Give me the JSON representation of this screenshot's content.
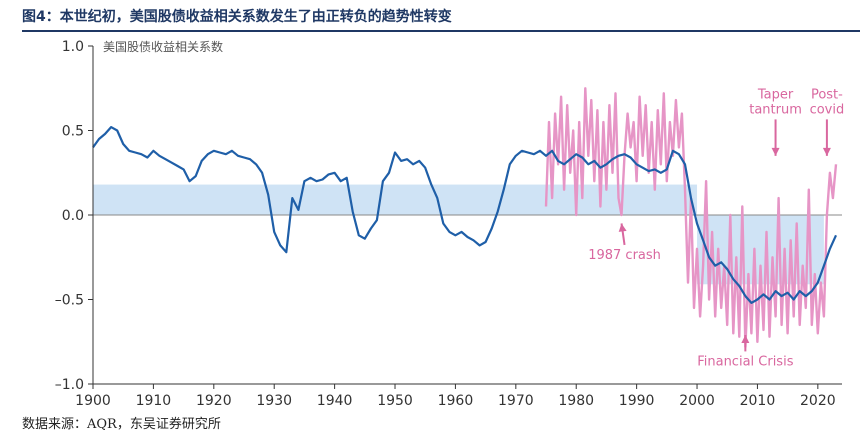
{
  "figure_title": "图4：本世纪初，美国股债收益相关系数发生了由正转负的趋势性转变",
  "source_note": "数据来源：AQR，东吴证券研究所",
  "colors": {
    "title": "#1f3864",
    "corr_line": "#1f5fa8",
    "rolling_line": "#e695c6",
    "band": "#cfe3f5",
    "annotation": "#d9679f",
    "axis_text": "#333333"
  },
  "chart_data": {
    "type": "line",
    "ylabel": "美国股债收益相关系数",
    "xlim": [
      1900,
      2024
    ],
    "ylim": [
      -1.0,
      1.0
    ],
    "x_ticks": [
      1900,
      1910,
      1920,
      1930,
      1940,
      1950,
      1960,
      1970,
      1980,
      1990,
      2000,
      2010,
      2020
    ],
    "y_ticks": [
      {
        "value": 1.0,
        "label": "1.0"
      },
      {
        "value": 0.5,
        "label": "0.5"
      },
      {
        "value": 0.0,
        "label": "0.0"
      },
      {
        "value": -0.5,
        "label": "–0.5"
      },
      {
        "value": -1.0,
        "label": "–1.0"
      }
    ],
    "bands": [
      {
        "x": [
          1900,
          2000
        ],
        "y": [
          0.0,
          0.18
        ]
      },
      {
        "x": [
          2000,
          2021
        ],
        "y": [
          -0.41,
          0.0
        ]
      }
    ],
    "series": [
      {
        "key": "long_window",
        "points": [
          [
            1900,
            0.4
          ],
          [
            1901,
            0.45
          ],
          [
            1902,
            0.48
          ],
          [
            1903,
            0.52
          ],
          [
            1904,
            0.5
          ],
          [
            1905,
            0.42
          ],
          [
            1906,
            0.38
          ],
          [
            1907,
            0.37
          ],
          [
            1908,
            0.36
          ],
          [
            1909,
            0.34
          ],
          [
            1910,
            0.38
          ],
          [
            1911,
            0.35
          ],
          [
            1912,
            0.33
          ],
          [
            1913,
            0.31
          ],
          [
            1914,
            0.29
          ],
          [
            1915,
            0.27
          ],
          [
            1916,
            0.2
          ],
          [
            1917,
            0.23
          ],
          [
            1918,
            0.32
          ],
          [
            1919,
            0.36
          ],
          [
            1920,
            0.38
          ],
          [
            1921,
            0.37
          ],
          [
            1922,
            0.36
          ],
          [
            1923,
            0.38
          ],
          [
            1924,
            0.35
          ],
          [
            1925,
            0.34
          ],
          [
            1926,
            0.33
          ],
          [
            1927,
            0.3
          ],
          [
            1928,
            0.25
          ],
          [
            1929,
            0.12
          ],
          [
            1930,
            -0.1
          ],
          [
            1931,
            -0.18
          ],
          [
            1932,
            -0.22
          ],
          [
            1933,
            0.1
          ],
          [
            1934,
            0.03
          ],
          [
            1935,
            0.2
          ],
          [
            1936,
            0.22
          ],
          [
            1937,
            0.2
          ],
          [
            1938,
            0.21
          ],
          [
            1939,
            0.24
          ],
          [
            1940,
            0.25
          ],
          [
            1941,
            0.2
          ],
          [
            1942,
            0.22
          ],
          [
            1943,
            0.02
          ],
          [
            1944,
            -0.12
          ],
          [
            1945,
            -0.14
          ],
          [
            1946,
            -0.08
          ],
          [
            1947,
            -0.03
          ],
          [
            1948,
            0.2
          ],
          [
            1949,
            0.25
          ],
          [
            1950,
            0.37
          ],
          [
            1951,
            0.32
          ],
          [
            1952,
            0.33
          ],
          [
            1953,
            0.3
          ],
          [
            1954,
            0.32
          ],
          [
            1955,
            0.28
          ],
          [
            1956,
            0.18
          ],
          [
            1957,
            0.1
          ],
          [
            1958,
            -0.05
          ],
          [
            1959,
            -0.1
          ],
          [
            1960,
            -0.12
          ],
          [
            1961,
            -0.1
          ],
          [
            1962,
            -0.13
          ],
          [
            1963,
            -0.15
          ],
          [
            1964,
            -0.18
          ],
          [
            1965,
            -0.16
          ],
          [
            1966,
            -0.08
          ],
          [
            1967,
            0.02
          ],
          [
            1968,
            0.15
          ],
          [
            1969,
            0.3
          ],
          [
            1970,
            0.35
          ],
          [
            1971,
            0.38
          ],
          [
            1972,
            0.37
          ],
          [
            1973,
            0.36
          ],
          [
            1974,
            0.38
          ],
          [
            1975,
            0.35
          ],
          [
            1976,
            0.38
          ],
          [
            1977,
            0.32
          ],
          [
            1978,
            0.3
          ],
          [
            1979,
            0.33
          ],
          [
            1980,
            0.36
          ],
          [
            1981,
            0.34
          ],
          [
            1982,
            0.3
          ],
          [
            1983,
            0.32
          ],
          [
            1984,
            0.28
          ],
          [
            1985,
            0.3
          ],
          [
            1986,
            0.33
          ],
          [
            1987,
            0.35
          ],
          [
            1988,
            0.36
          ],
          [
            1989,
            0.34
          ],
          [
            1990,
            0.3
          ],
          [
            1991,
            0.28
          ],
          [
            1992,
            0.26
          ],
          [
            1993,
            0.27
          ],
          [
            1994,
            0.25
          ],
          [
            1995,
            0.27
          ],
          [
            1996,
            0.38
          ],
          [
            1997,
            0.36
          ],
          [
            1998,
            0.3
          ],
          [
            1999,
            0.1
          ],
          [
            2000,
            -0.05
          ],
          [
            2001,
            -0.15
          ],
          [
            2002,
            -0.25
          ],
          [
            2003,
            -0.3
          ],
          [
            2004,
            -0.28
          ],
          [
            2005,
            -0.32
          ],
          [
            2006,
            -0.38
          ],
          [
            2007,
            -0.42
          ],
          [
            2008,
            -0.48
          ],
          [
            2009,
            -0.52
          ],
          [
            2010,
            -0.5
          ],
          [
            2011,
            -0.47
          ],
          [
            2012,
            -0.5
          ],
          [
            2013,
            -0.45
          ],
          [
            2014,
            -0.48
          ],
          [
            2015,
            -0.46
          ],
          [
            2016,
            -0.5
          ],
          [
            2017,
            -0.45
          ],
          [
            2018,
            -0.48
          ],
          [
            2019,
            -0.45
          ],
          [
            2020,
            -0.4
          ],
          [
            2021,
            -0.3
          ],
          [
            2022,
            -0.2
          ],
          [
            2023,
            -0.12
          ]
        ]
      },
      {
        "key": "short_window",
        "points": [
          [
            1975,
            0.05
          ],
          [
            1975.5,
            0.55
          ],
          [
            1976,
            0.1
          ],
          [
            1976.5,
            0.6
          ],
          [
            1977,
            0.3
          ],
          [
            1977.5,
            0.7
          ],
          [
            1978,
            0.15
          ],
          [
            1978.5,
            0.65
          ],
          [
            1979,
            0.25
          ],
          [
            1979.5,
            0.5
          ],
          [
            1980,
            0.0
          ],
          [
            1980.5,
            0.55
          ],
          [
            1981,
            0.1
          ],
          [
            1981.5,
            0.75
          ],
          [
            1982,
            0.35
          ],
          [
            1982.5,
            0.68
          ],
          [
            1983,
            0.2
          ],
          [
            1983.5,
            0.62
          ],
          [
            1984,
            0.05
          ],
          [
            1984.5,
            0.55
          ],
          [
            1985,
            0.15
          ],
          [
            1985.5,
            0.65
          ],
          [
            1986,
            0.25
          ],
          [
            1986.5,
            0.72
          ],
          [
            1987,
            0.1
          ],
          [
            1987.5,
            0.0
          ],
          [
            1988,
            0.35
          ],
          [
            1988.5,
            0.6
          ],
          [
            1989,
            0.4
          ],
          [
            1989.5,
            0.55
          ],
          [
            1990,
            0.2
          ],
          [
            1990.5,
            0.7
          ],
          [
            1991,
            0.35
          ],
          [
            1991.5,
            0.65
          ],
          [
            1992,
            0.25
          ],
          [
            1992.5,
            0.55
          ],
          [
            1993,
            0.15
          ],
          [
            1993.5,
            0.62
          ],
          [
            1994,
            0.3
          ],
          [
            1994.5,
            0.72
          ],
          [
            1995,
            0.2
          ],
          [
            1995.5,
            0.55
          ],
          [
            1996,
            0.35
          ],
          [
            1996.5,
            0.68
          ],
          [
            1997,
            0.4
          ],
          [
            1997.5,
            0.6
          ],
          [
            1998,
            0.15
          ],
          [
            1998.5,
            -0.4
          ],
          [
            1999,
            0.1
          ],
          [
            1999.5,
            -0.55
          ],
          [
            2000,
            -0.2
          ],
          [
            2000.5,
            -0.6
          ],
          [
            2001,
            -0.3
          ],
          [
            2001.5,
            0.2
          ],
          [
            2002,
            -0.5
          ],
          [
            2002.5,
            -0.1
          ],
          [
            2003,
            -0.6
          ],
          [
            2003.5,
            -0.2
          ],
          [
            2004,
            -0.55
          ],
          [
            2004.5,
            -0.3
          ],
          [
            2005,
            -0.65
          ],
          [
            2005.5,
            0.0
          ],
          [
            2006,
            -0.7
          ],
          [
            2006.5,
            -0.25
          ],
          [
            2007,
            -0.72
          ],
          [
            2007.5,
            0.05
          ],
          [
            2008,
            -0.78
          ],
          [
            2008.5,
            -0.35
          ],
          [
            2009,
            -0.7
          ],
          [
            2009.5,
            -0.2
          ],
          [
            2010,
            -0.75
          ],
          [
            2010.5,
            -0.3
          ],
          [
            2011,
            -0.68
          ],
          [
            2011.5,
            -0.1
          ],
          [
            2012,
            -0.72
          ],
          [
            2012.5,
            -0.25
          ],
          [
            2013,
            -0.6
          ],
          [
            2013.5,
            0.1
          ],
          [
            2014,
            -0.65
          ],
          [
            2014.5,
            -0.2
          ],
          [
            2015,
            -0.7
          ],
          [
            2015.5,
            -0.15
          ],
          [
            2016,
            -0.6
          ],
          [
            2016.5,
            -0.05
          ],
          [
            2017,
            -0.65
          ],
          [
            2017.5,
            -0.3
          ],
          [
            2018,
            -0.55
          ],
          [
            2018.5,
            0.15
          ],
          [
            2019,
            -0.65
          ],
          [
            2019.5,
            -0.35
          ],
          [
            2020,
            -0.7
          ],
          [
            2020.5,
            -0.4
          ],
          [
            2021,
            -0.6
          ],
          [
            2021.5,
            0.0
          ],
          [
            2022,
            0.25
          ],
          [
            2022.5,
            0.1
          ],
          [
            2023,
            0.3
          ]
        ]
      }
    ],
    "annotations": [
      {
        "text": "1987 crash",
        "x": 1988,
        "y": -0.26,
        "arrow_to": [
          1987.5,
          -0.05
        ]
      },
      {
        "text": "Financial Crisis",
        "x": 2008,
        "y": -0.89,
        "arrow_to": [
          2008,
          -0.71
        ]
      },
      {
        "text": "Taper tantrum",
        "lines": [
          "Taper",
          "tantrum"
        ],
        "x": 2013,
        "y": 0.69,
        "arrow_to": [
          2013,
          0.35
        ]
      },
      {
        "text": "Post-covid",
        "lines": [
          "Post-",
          "covid"
        ],
        "x": 2021.5,
        "y": 0.69,
        "arrow_to": [
          2021.5,
          0.35
        ]
      }
    ]
  }
}
